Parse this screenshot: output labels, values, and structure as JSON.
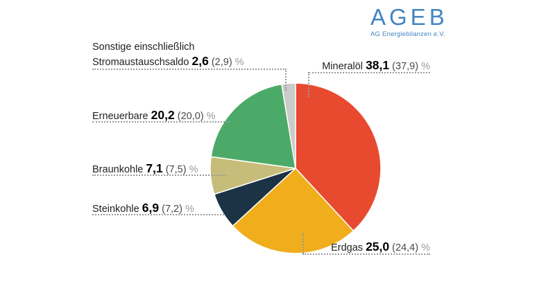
{
  "logo": {
    "title": "AGEB",
    "subtitle": "AG Energiebilanzen e.V.",
    "color": "#4285C2"
  },
  "chart_data": {
    "type": "pie",
    "unit": "%",
    "start_angle_deg": 0,
    "direction": "clockwise",
    "legend_position": "callouts",
    "slices": [
      {
        "id": "mineraloel",
        "label": "Mineralöl",
        "value": 38.1,
        "previous_value": 37.9,
        "value_text": "38,1",
        "previous_text": "(37,9)",
        "color": "#E74A2F"
      },
      {
        "id": "erdgas",
        "label": "Erdgas",
        "value": 25.0,
        "previous_value": 24.4,
        "value_text": "25,0",
        "previous_text": "(24,4)",
        "color": "#F0AE1D"
      },
      {
        "id": "steinkohle",
        "label": "Steinkohle",
        "value": 6.9,
        "previous_value": 7.2,
        "value_text": "6,9",
        "previous_text": "(7,2)",
        "color": "#1C3345"
      },
      {
        "id": "braunkohle",
        "label": "Braunkohle",
        "value": 7.1,
        "previous_value": 7.5,
        "value_text": "7,1",
        "previous_text": "(7,5)",
        "color": "#C6BD7A"
      },
      {
        "id": "erneuerbare",
        "label": "Erneuerbare",
        "value": 20.2,
        "previous_value": 20.0,
        "value_text": "20,2",
        "previous_text": "(20,0)",
        "color": "#4CAA68"
      },
      {
        "id": "sonstige",
        "label": "Sonstige einschließlich Stromaustauschsaldo",
        "label_line1": "Sonstige einschließlich",
        "label_line2": "Stromaustauschsaldo",
        "value": 2.6,
        "previous_value": 2.9,
        "value_text": "2,6",
        "previous_text": "(2,9)",
        "color": "#CBCBCB"
      }
    ]
  }
}
